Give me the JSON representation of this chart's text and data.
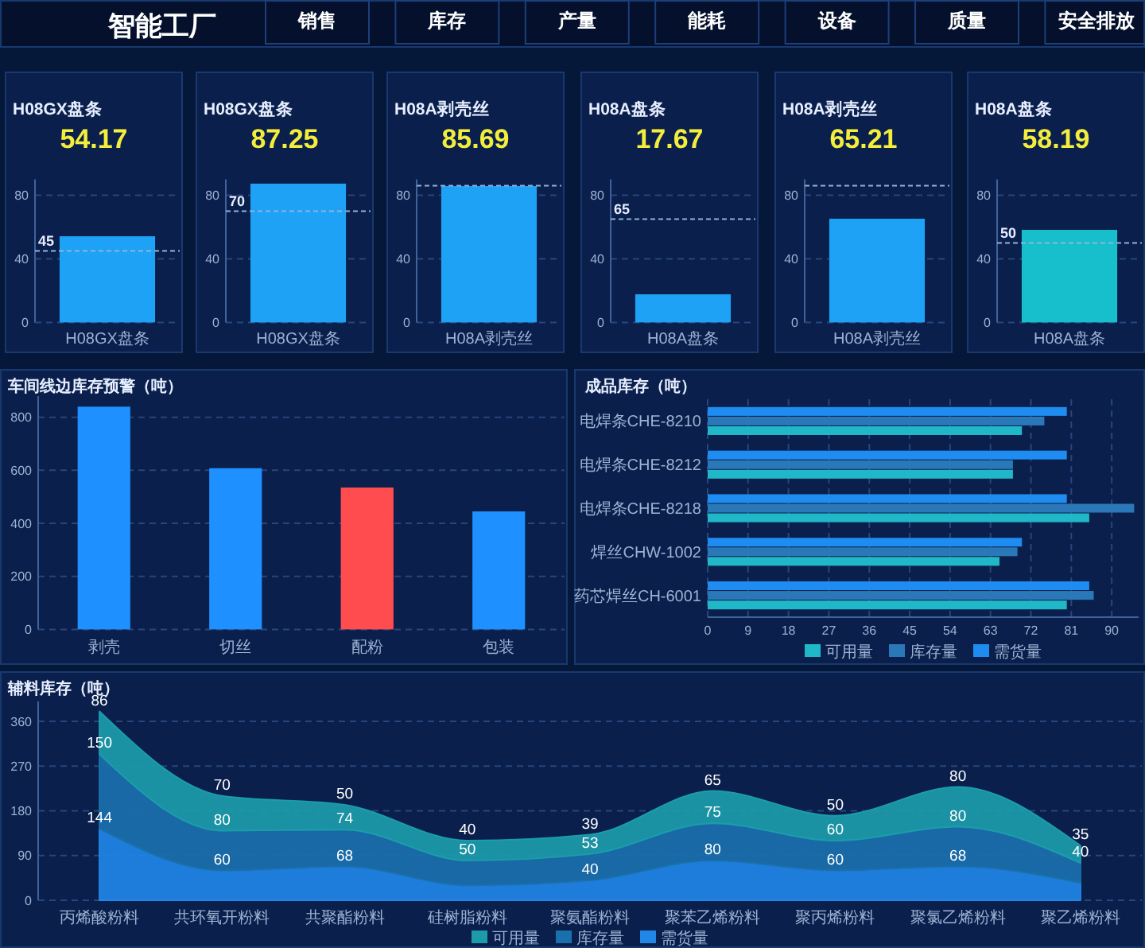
{
  "chart_data": [
    {
      "type": "other",
      "title": "智能工厂",
      "annotations": [
        "销售",
        "库存",
        "产量",
        "能耗",
        "设备",
        "质量",
        "安全排放"
      ]
    },
    {
      "type": "bar",
      "title": "H08GX盘条",
      "subtitle": "54.17",
      "categories": [
        "H08GX盘条"
      ],
      "values": [
        54.17
      ],
      "color": "#1ea2f5",
      "ylim": [
        0,
        90
      ],
      "yticks": [
        0,
        40,
        80
      ],
      "grid": "y",
      "ref_lines": [
        {
          "axis": "y",
          "value": 45,
          "label": "45"
        }
      ]
    },
    {
      "type": "bar",
      "title": "H08GX盘条",
      "subtitle": "87.25",
      "categories": [
        "H08GX盘条"
      ],
      "values": [
        87.25
      ],
      "color": "#1ea2f5",
      "ylim": [
        0,
        90
      ],
      "yticks": [
        0,
        40,
        80
      ],
      "grid": "y",
      "ref_lines": [
        {
          "axis": "y",
          "value": 70,
          "label": "70"
        }
      ]
    },
    {
      "type": "bar",
      "title": "H08A剥壳丝",
      "subtitle": "85.69",
      "categories": [
        "H08A剥壳丝"
      ],
      "values": [
        85.69
      ],
      "color": "#1ea2f5",
      "ylim": [
        0,
        90
      ],
      "yticks": [
        0,
        40,
        80
      ],
      "grid": "y",
      "ref_lines": [
        {
          "axis": "y",
          "value": 86
        }
      ]
    },
    {
      "type": "bar",
      "title": "H08A盘条",
      "subtitle": "17.67",
      "categories": [
        "H08A盘条"
      ],
      "values": [
        17.67
      ],
      "color": "#1ea2f5",
      "ylim": [
        0,
        90
      ],
      "yticks": [
        0,
        40,
        80
      ],
      "grid": "y",
      "ref_lines": [
        {
          "axis": "y",
          "value": 65,
          "label": "65"
        }
      ]
    },
    {
      "type": "bar",
      "title": "H08A剥壳丝",
      "subtitle": "65.21",
      "categories": [
        "H08A剥壳丝"
      ],
      "values": [
        65.21
      ],
      "color": "#1ea2f5",
      "ylim": [
        0,
        90
      ],
      "yticks": [
        0,
        40,
        80
      ],
      "grid": "y",
      "ref_lines": [
        {
          "axis": "y",
          "value": 86
        }
      ]
    },
    {
      "type": "bar",
      "title": "H08A盘条",
      "subtitle": "58.19",
      "categories": [
        "H08A盘条"
      ],
      "values": [
        58.19
      ],
      "color": "#17bfcc",
      "ylim": [
        0,
        90
      ],
      "yticks": [
        0,
        40,
        80
      ],
      "grid": "y",
      "ref_lines": [
        {
          "axis": "y",
          "value": 50,
          "label": "50"
        }
      ]
    },
    {
      "type": "bar",
      "title": "车间线边库存预警（吨）",
      "categories": [
        "剥壳",
        "切丝",
        "配粉",
        "包装"
      ],
      "values": [
        840,
        608,
        535,
        445
      ],
      "colors": [
        "#1e90ff",
        "#1e90ff",
        "#ff4d4f",
        "#1e90ff"
      ],
      "ylim": [
        0,
        880
      ],
      "yticks": [
        0,
        200,
        400,
        600,
        800
      ],
      "grid": "y"
    },
    {
      "type": "bar",
      "orientation": "horizontal",
      "title": "成品库存（吨）",
      "categories": [
        "电焊条CHE-8210",
        "电焊条CHE-8212",
        "电焊条CHE-8218",
        "焊丝CHW-1002",
        "药芯焊丝CH-6001"
      ],
      "series": [
        {
          "name": "可用量",
          "color": "#20b8c8",
          "values": [
            70,
            68,
            85,
            65,
            80
          ]
        },
        {
          "name": "库存量",
          "color": "#2a78b8",
          "values": [
            75,
            68,
            95,
            69,
            86
          ]
        },
        {
          "name": "需货量",
          "color": "#1e8cf0",
          "values": [
            80,
            80,
            80,
            70,
            85
          ]
        }
      ],
      "xlim": [
        0,
        96
      ],
      "xticks": [
        0,
        9,
        18,
        27,
        36,
        45,
        54,
        63,
        72,
        81,
        90
      ],
      "grid": "x",
      "legend": "bottom"
    },
    {
      "type": "area",
      "stacked": true,
      "title": "辅料库存（吨）",
      "categories": [
        "丙烯酸粉料",
        "共环氧开粉料",
        "共聚酯粉料",
        "硅树脂粉料",
        "聚氨酯粉料",
        "聚苯乙烯粉料",
        "聚丙烯粉料",
        "聚氯乙烯粉料",
        "聚乙烯粉料"
      ],
      "series": [
        {
          "name": "需货量",
          "color": "#2186e6",
          "values": [
            144,
            60,
            68,
            30,
            40,
            80,
            60,
            68,
            35
          ],
          "value_labels": [
            "144",
            "60",
            "68",
            null,
            "40",
            "80",
            "60",
            "68",
            null
          ]
        },
        {
          "name": "库存量",
          "color": "#1a70ad",
          "values": [
            150,
            80,
            74,
            50,
            53,
            75,
            60,
            80,
            40
          ],
          "value_labels": [
            "150",
            "80",
            "74",
            "50",
            "53",
            "75",
            "60",
            "80",
            "40"
          ]
        },
        {
          "name": "可用量",
          "color": "#1c9cab",
          "values": [
            86,
            70,
            50,
            40,
            39,
            65,
            50,
            80,
            35
          ],
          "value_labels": [
            "86",
            "70",
            "50",
            "40",
            "39",
            "65",
            "50",
            "80",
            "35"
          ]
        }
      ],
      "ylim": [
        0,
        400
      ],
      "yticks": [
        0,
        90,
        180,
        270,
        360
      ],
      "grid": "y",
      "legend": "bottom"
    }
  ]
}
